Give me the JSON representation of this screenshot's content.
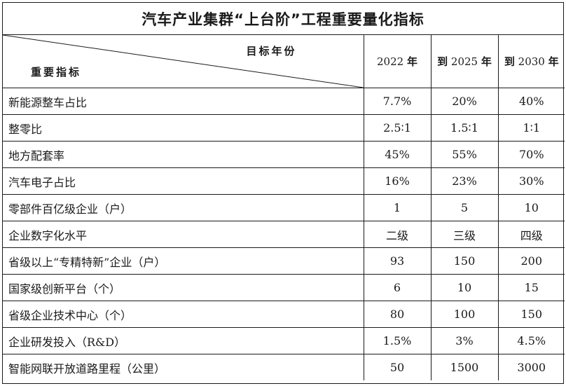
{
  "title": "汽车产业集群“上台阶”工程重要量化指标",
  "header": {
    "diagonal_top": "目标年份",
    "diagonal_bottom": "重要指标",
    "years": [
      {
        "prefix": "",
        "year": "2022",
        "suffix": "年"
      },
      {
        "prefix": "到",
        "year": "2025",
        "suffix": "年"
      },
      {
        "prefix": "到",
        "year": "2030",
        "suffix": "年"
      }
    ]
  },
  "rows": [
    {
      "name": "新能源整车占比",
      "values": [
        "7.7%",
        "20%",
        "40%"
      ]
    },
    {
      "name": "整零比",
      "values": [
        "2.5∶1",
        "1.5∶1",
        "1∶1"
      ]
    },
    {
      "name": "地方配套率",
      "values": [
        "45%",
        "55%",
        "70%"
      ]
    },
    {
      "name": "汽车电子占比",
      "values": [
        "16%",
        "23%",
        "30%"
      ]
    },
    {
      "name": "零部件百亿级企业（户）",
      "values": [
        "1",
        "5",
        "10"
      ]
    },
    {
      "name": "企业数字化水平",
      "values": [
        "二级",
        "三级",
        "四级"
      ]
    },
    {
      "name": "省级以上“专精特新”企业（户）",
      "values": [
        "93",
        "150",
        "200"
      ]
    },
    {
      "name": "国家级创新平台（个）",
      "values": [
        "6",
        "10",
        "15"
      ]
    },
    {
      "name": "省级企业技术中心（个）",
      "values": [
        "80",
        "100",
        "150"
      ]
    },
    {
      "name": "企业研发投入（R&D）",
      "values": [
        "1.5%",
        "3%",
        "4.5%"
      ]
    },
    {
      "name": "智能网联开放道路里程（公里）",
      "values": [
        "50",
        "1500",
        "3000"
      ]
    }
  ]
}
